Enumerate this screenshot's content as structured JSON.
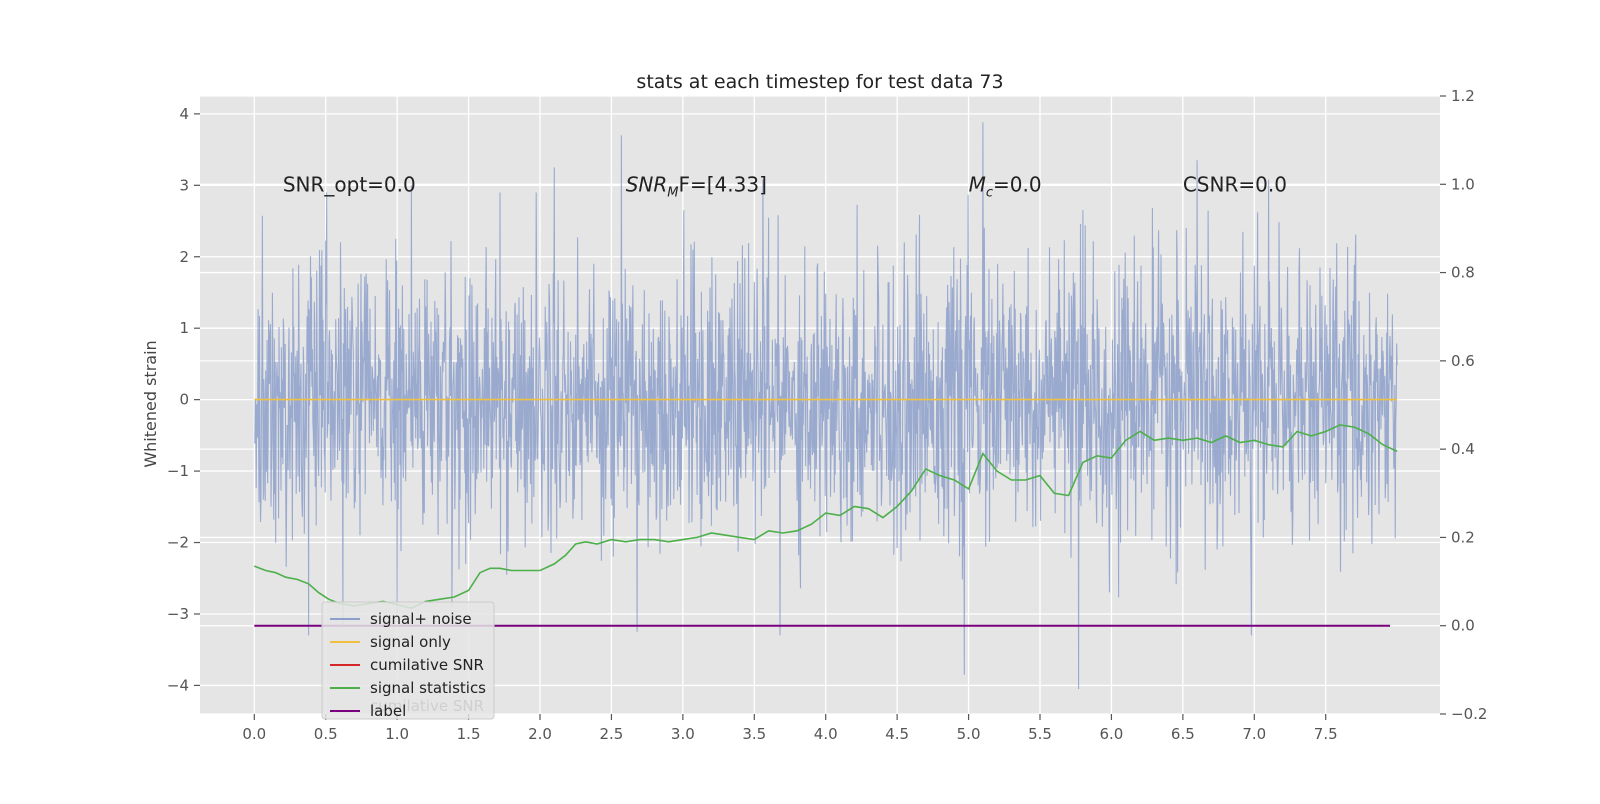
{
  "chart_data": {
    "type": "line",
    "title": "stats at each timestep for test data 73",
    "ylabel": "Whitened strain",
    "xlabel": "",
    "xlim": [
      -0.38,
      8.3
    ],
    "ylim": [
      -4.4,
      4.25
    ],
    "y2lim": [
      -0.2,
      1.2
    ],
    "x_ticks": [
      "0.0",
      "0.5",
      "1.0",
      "1.5",
      "2.0",
      "2.5",
      "3.0",
      "3.5",
      "4.0",
      "4.5",
      "5.0",
      "5.5",
      "6.0",
      "6.5",
      "7.0",
      "7.5"
    ],
    "x_tick_values": [
      0,
      0.5,
      1,
      1.5,
      2,
      2.5,
      3,
      3.5,
      4,
      4.5,
      5,
      5.5,
      6,
      6.5,
      7,
      7.5
    ],
    "y_ticks": [
      "−4",
      "−3",
      "−2",
      "−1",
      "0",
      "1",
      "2",
      "3",
      "4"
    ],
    "y_tick_values": [
      -4,
      -3,
      -2,
      -1,
      0,
      1,
      2,
      3,
      4
    ],
    "y2_ticks": [
      "−0.2",
      "0.0",
      "0.2",
      "0.4",
      "0.6",
      "0.8",
      "1.0",
      "1.2"
    ],
    "y2_tick_values": [
      -0.2,
      0,
      0.2,
      0.4,
      0.6,
      0.8,
      1.0,
      1.2
    ],
    "grid": true,
    "legend_position": "lower-left",
    "annotations": [
      {
        "id": "snr-opt",
        "text": "SNR_opt=0.0",
        "x": 0.2,
        "y": 3.0
      },
      {
        "id": "snr-mf",
        "text_main": "SNR",
        "text_sub": "M",
        "text_tail": "F=[4.33]",
        "x": 2.6,
        "y": 3.0
      },
      {
        "id": "mc",
        "text_main": "M",
        "text_sub": "c",
        "text_tail": "=0.0",
        "x": 5.0,
        "y": 3.0
      },
      {
        "id": "csnr",
        "text": "CSNR=0.0",
        "x": 6.5,
        "y": 3.0
      }
    ],
    "series": [
      {
        "name": "signal+ noise",
        "color": "#8da0cb",
        "axis": "left",
        "kind": "noise",
        "x_range": [
          0,
          8.0
        ],
        "y_range": [
          -4.05,
          3.88
        ],
        "peaks": [
          {
            "x": 1.1,
            "y": 3.0
          },
          {
            "x": 2.1,
            "y": 3.25
          },
          {
            "x": 2.57,
            "y": 3.7
          },
          {
            "x": 3.56,
            "y": 3.08
          },
          {
            "x": 5.1,
            "y": 3.88
          },
          {
            "x": 7.1,
            "y": 3.08
          },
          {
            "x": 6.6,
            "y": 3.35
          },
          {
            "x": 4.97,
            "y": -3.85
          },
          {
            "x": 5.77,
            "y": -4.05
          },
          {
            "x": 6.98,
            "y": -3.3
          },
          {
            "x": 3.68,
            "y": -3.3
          },
          {
            "x": 2.68,
            "y": -3.25
          },
          {
            "x": 0.38,
            "y": -3.3
          },
          {
            "x": 1.0,
            "y": -3.0
          },
          {
            "x": 0.62,
            "y": -3.15
          }
        ]
      },
      {
        "name": "signal only",
        "color": "#f0c040",
        "axis": "left",
        "x": [
          0,
          8.0
        ],
        "y": [
          0,
          0
        ]
      },
      {
        "name": "cumilative SNR",
        "color": "#d62728",
        "axis": "left",
        "x": [],
        "y": []
      },
      {
        "name": "signal statistics",
        "color": "#4daf4a",
        "axis": "right",
        "x": [
          0,
          0.08,
          0.15,
          0.22,
          0.3,
          0.38,
          0.45,
          0.52,
          0.6,
          0.7,
          0.8,
          0.9,
          1.0,
          1.1,
          1.2,
          1.3,
          1.4,
          1.5,
          1.58,
          1.65,
          1.72,
          1.8,
          1.9,
          2.0,
          2.1,
          2.18,
          2.25,
          2.32,
          2.4,
          2.5,
          2.6,
          2.7,
          2.8,
          2.9,
          3.0,
          3.1,
          3.2,
          3.3,
          3.4,
          3.5,
          3.6,
          3.7,
          3.8,
          3.9,
          4.0,
          4.1,
          4.2,
          4.3,
          4.4,
          4.5,
          4.6,
          4.7,
          4.8,
          4.9,
          5.0,
          5.1,
          5.2,
          5.3,
          5.4,
          5.5,
          5.6,
          5.7,
          5.8,
          5.9,
          6.0,
          6.1,
          6.2,
          6.3,
          6.4,
          6.5,
          6.6,
          6.7,
          6.8,
          6.9,
          7.0,
          7.1,
          7.2,
          7.3,
          7.4,
          7.5,
          7.6,
          7.7,
          7.8,
          7.9,
          8.0
        ],
        "y": [
          0.135,
          0.125,
          0.12,
          0.11,
          0.105,
          0.095,
          0.075,
          0.06,
          0.05,
          0.045,
          0.05,
          0.055,
          0.048,
          0.04,
          0.055,
          0.06,
          0.065,
          0.08,
          0.12,
          0.13,
          0.13,
          0.125,
          0.125,
          0.125,
          0.14,
          0.16,
          0.185,
          0.19,
          0.185,
          0.195,
          0.19,
          0.195,
          0.195,
          0.19,
          0.195,
          0.2,
          0.21,
          0.205,
          0.2,
          0.195,
          0.215,
          0.21,
          0.215,
          0.23,
          0.255,
          0.25,
          0.27,
          0.265,
          0.245,
          0.27,
          0.305,
          0.355,
          0.34,
          0.33,
          0.31,
          0.39,
          0.35,
          0.33,
          0.33,
          0.34,
          0.3,
          0.295,
          0.37,
          0.385,
          0.38,
          0.42,
          0.44,
          0.42,
          0.425,
          0.42,
          0.425,
          0.415,
          0.43,
          0.415,
          0.42,
          0.41,
          0.405,
          0.44,
          0.43,
          0.44,
          0.455,
          0.45,
          0.435,
          0.41,
          0.395
        ]
      },
      {
        "name": "label",
        "color": "#7b0080",
        "axis": "right",
        "x": [
          0,
          7.95
        ],
        "y": [
          0,
          0
        ]
      }
    ],
    "legend_ghost_text": "cumilative SNR"
  }
}
